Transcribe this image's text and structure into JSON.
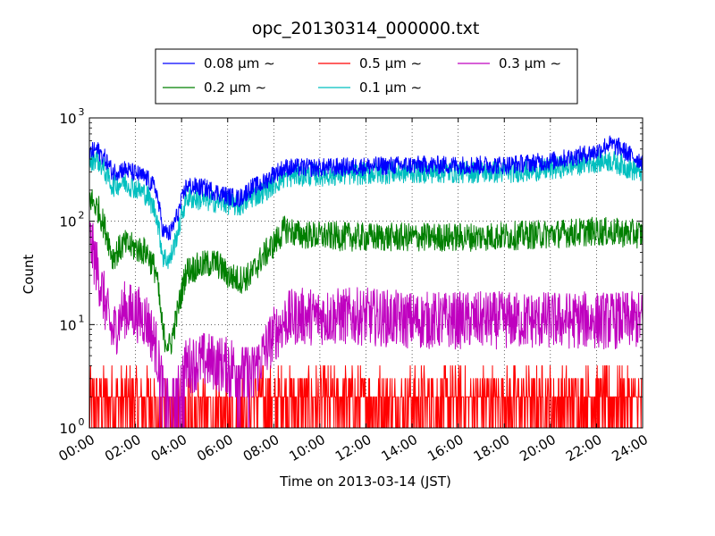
{
  "chart_data": {
    "type": "line",
    "title": "opc_20130314_000000.txt",
    "xlabel": "Time on 2013-03-14 (JST)",
    "ylabel": "Count",
    "yscale": "log",
    "ylim": [
      1,
      1000
    ],
    "y_ticks": [
      {
        "value": 1,
        "base": "10",
        "exp": "0"
      },
      {
        "value": 10,
        "base": "10",
        "exp": "1"
      },
      {
        "value": 100,
        "base": "10",
        "exp": "2"
      },
      {
        "value": 1000,
        "base": "10",
        "exp": "3"
      }
    ],
    "xlim": [
      "00:00",
      "24:00"
    ],
    "x_ticks": [
      "00:00",
      "02:00",
      "04:00",
      "06:00",
      "08:00",
      "10:00",
      "12:00",
      "14:00",
      "16:00",
      "18:00",
      "20:00",
      "22:00",
      "24:00"
    ],
    "grid": true,
    "legend_position": "top",
    "legend_order": [
      0,
      2,
      4,
      1,
      3
    ],
    "series": [
      {
        "name": "0.08 µm ∼",
        "color": "#0000ff",
        "x": [
          0,
          0.3,
          0.7,
          1,
          1.5,
          2,
          2.5,
          2.9,
          3.2,
          3.5,
          3.9,
          4.2,
          5,
          6,
          6.5,
          7,
          7.5,
          8,
          8.5,
          9,
          10,
          12,
          14,
          16,
          18,
          20,
          21,
          22,
          22.5,
          23,
          23.5,
          24
        ],
        "y": [
          450,
          500,
          400,
          300,
          320,
          290,
          260,
          200,
          80,
          75,
          130,
          220,
          210,
          175,
          165,
          210,
          230,
          290,
          330,
          330,
          330,
          340,
          350,
          350,
          350,
          380,
          420,
          470,
          560,
          520,
          430,
          380
        ]
      },
      {
        "name": "0.1 µm ∼",
        "color": "#00bfbf",
        "x": [
          0,
          0.3,
          0.7,
          1,
          1.5,
          2,
          2.5,
          2.9,
          3.2,
          3.5,
          3.9,
          4.2,
          5,
          6,
          6.5,
          7,
          7.5,
          8,
          8.5,
          9,
          10,
          12,
          14,
          16,
          18,
          20,
          21,
          22,
          22.5,
          23,
          23.5,
          24
        ],
        "y": [
          370,
          420,
          300,
          220,
          240,
          210,
          180,
          120,
          45,
          42,
          90,
          170,
          160,
          150,
          140,
          170,
          190,
          230,
          270,
          280,
          280,
          290,
          300,
          300,
          300,
          320,
          350,
          380,
          390,
          360,
          320,
          300
        ]
      },
      {
        "name": "0.2 µm ∼",
        "color": "#007f00",
        "x": [
          0,
          0.4,
          0.8,
          1,
          1.5,
          2,
          2.5,
          2.9,
          3.2,
          3.5,
          3.9,
          4.2,
          5,
          5.5,
          6,
          6.5,
          7,
          7.5,
          8,
          8.5,
          9,
          10,
          12,
          14,
          16,
          18,
          20,
          22,
          24
        ],
        "y": [
          170,
          130,
          70,
          45,
          60,
          55,
          50,
          32,
          8,
          6,
          16,
          33,
          38,
          40,
          30,
          27,
          30,
          45,
          60,
          85,
          75,
          72,
          70,
          70,
          70,
          72,
          75,
          80,
          75
        ]
      },
      {
        "name": "0.3 µm ∼",
        "color": "#bf00bf",
        "x": [
          0,
          0.4,
          0.8,
          1,
          1.5,
          2,
          2.5,
          2.9,
          3.2,
          3.5,
          3.9,
          4.2,
          5,
          6,
          7,
          7.5,
          8,
          8.5,
          9,
          10,
          12,
          14,
          16,
          18,
          20,
          22,
          24
        ],
        "y": [
          70,
          30,
          12,
          8,
          14,
          13,
          11,
          6,
          2,
          1.5,
          2,
          4,
          4.5,
          4,
          3,
          5,
          8,
          11,
          12,
          12,
          12,
          11,
          11,
          11,
          11,
          11,
          11
        ]
      },
      {
        "name": "0.5 µm ∼",
        "color": "#ff0000",
        "x": [
          0,
          2,
          2.5,
          3,
          4,
          6,
          8,
          10,
          12,
          14,
          16,
          18,
          20,
          22,
          24
        ],
        "y": [
          1.5,
          2,
          2,
          1.3,
          1.3,
          1.4,
          1.6,
          1.7,
          1.7,
          1.7,
          1.7,
          1.7,
          1.7,
          1.7,
          1.7
        ]
      }
    ]
  }
}
